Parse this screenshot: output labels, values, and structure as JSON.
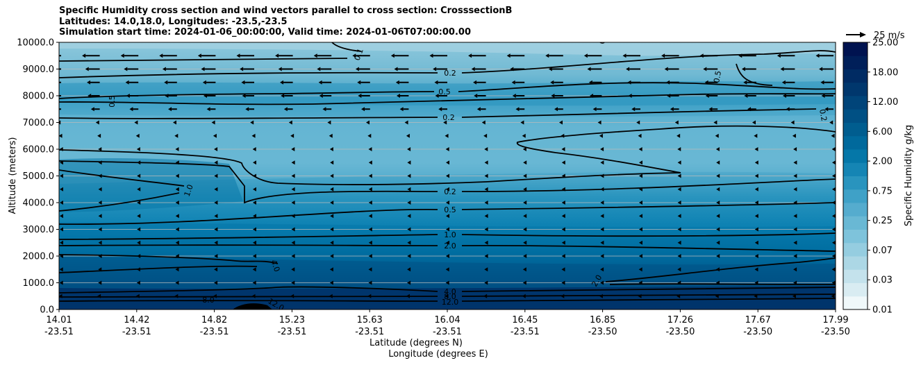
{
  "figure": {
    "title_lines": [
      "Specific Humidity cross section and wind vectors parallel to cross section: CrosssectionB",
      "Latitudes: 14.0,18.0, Longitudes: -23.5,-23.5",
      "Simulation start time: 2024-01-06_00:00:00, Valid time: 2024-01-06T07:00:00.00"
    ]
  },
  "chart_data": {
    "type": "contourf",
    "title": "Specific Humidity cross section and wind vectors parallel to cross section: CrosssectionB",
    "ylabel": "Altitude (meters)",
    "xlabel_lines": [
      "Latitude (degrees N)",
      "Longitude (degrees E)"
    ],
    "ylim": [
      0,
      10000
    ],
    "yticks": [
      "0.0",
      "1000.0",
      "2000.0",
      "3000.0",
      "4000.0",
      "5000.0",
      "6000.0",
      "7000.0",
      "8000.0",
      "9000.0",
      "10000.0"
    ],
    "xticks": [
      {
        "lat": "14.01",
        "lon": "-23.51"
      },
      {
        "lat": "14.42",
        "lon": "-23.51"
      },
      {
        "lat": "14.82",
        "lon": "-23.51"
      },
      {
        "lat": "15.23",
        "lon": "-23.51"
      },
      {
        "lat": "15.63",
        "lon": "-23.51"
      },
      {
        "lat": "16.04",
        "lon": "-23.51"
      },
      {
        "lat": "16.45",
        "lon": "-23.51"
      },
      {
        "lat": "16.85",
        "lon": "-23.50"
      },
      {
        "lat": "17.26",
        "lon": "-23.50"
      },
      {
        "lat": "17.67",
        "lon": "-23.50"
      },
      {
        "lat": "17.99",
        "lon": "-23.50"
      }
    ],
    "colorbar": {
      "label": "Specific Humidity g/kg",
      "ticks": [
        "0.01",
        "0.03",
        "0.07",
        "0.25",
        "0.75",
        "2.00",
        "6.00",
        "12.00",
        "18.00",
        "25.00"
      ],
      "colors": [
        "#f0f8fa",
        "#d9ecf2",
        "#c4e2ec",
        "#acd7e5",
        "#95cde0",
        "#7ec3db",
        "#69b8d4",
        "#55acce",
        "#3fa1c7",
        "#2994be",
        "#1585b4",
        "#0577a8",
        "#00699c",
        "#005d8f",
        "#005084",
        "#004479",
        "#00376d",
        "#002b63",
        "#001f59",
        "#001350"
      ]
    },
    "contour_labels": [
      "0.1",
      "0.2",
      "0.5",
      "0.2",
      "0.5",
      "0.5",
      "0.2",
      "0.2",
      "0.5",
      "1.0",
      "1.0",
      "2.0",
      "4.0",
      "4.0",
      "8.0",
      "8.0",
      "12.0",
      "12.0",
      "2.0",
      "0.2"
    ],
    "wind_reference": {
      "label": "25 m/s",
      "speed": 25
    },
    "wind_field": [
      {
        "altitude": 9500,
        "speed": 22
      },
      {
        "altitude": 9000,
        "speed": 18
      },
      {
        "altitude": 8500,
        "speed": 16
      },
      {
        "altitude": 8000,
        "speed": 15
      },
      {
        "altitude": 7500,
        "speed": 11
      },
      {
        "altitude": 7000,
        "speed": 5
      },
      {
        "altitude": 6500,
        "speed": 3
      },
      {
        "altitude": 6000,
        "speed": 2
      },
      {
        "altitude": 5500,
        "speed": 1
      },
      {
        "altitude": 5000,
        "speed": 1
      },
      {
        "altitude": 4500,
        "speed": 1
      },
      {
        "altitude": 4000,
        "speed": 1
      },
      {
        "altitude": 3500,
        "speed": 1
      },
      {
        "altitude": 3000,
        "speed": 1
      },
      {
        "altitude": 2500,
        "speed": 1
      },
      {
        "altitude": 2000,
        "speed": 1
      },
      {
        "altitude": 1500,
        "speed": 2
      },
      {
        "altitude": 1000,
        "speed": 2
      },
      {
        "altitude": 500,
        "speed": 3
      }
    ],
    "wind_columns": 21
  }
}
